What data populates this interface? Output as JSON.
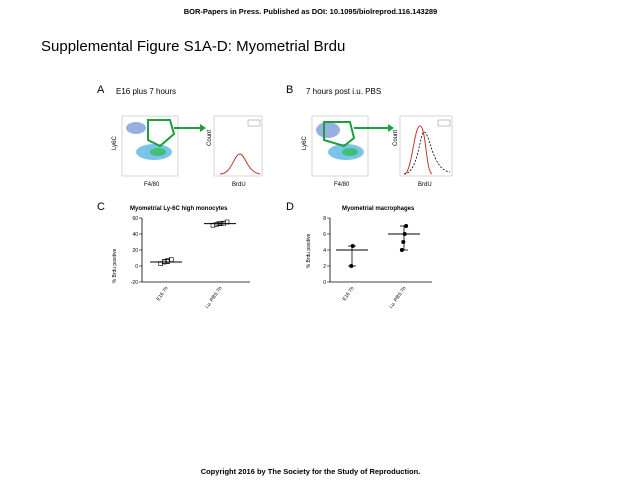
{
  "header": "BOR-Papers in Press. Published as DOI: 10.1095/biolreprod.116.143289",
  "title": "Supplemental Figure S1A-D: Myometrial Brdu",
  "footer": "Copyright 2016 by The Society for the Study of Reproduction.",
  "panels": {
    "A": {
      "letter": "A",
      "title": "E16 plus 7 hours",
      "flow_xlabel": "F4/80",
      "flow_ylabel": "Ly6C",
      "hist_xlabel": "BrdU",
      "hist_ylabel": "Count"
    },
    "B": {
      "letter": "B",
      "title": "7 hours post i.u. PBS",
      "flow_xlabel": "F4/80",
      "flow_ylabel": "Ly6C",
      "hist_xlabel": "BrdU",
      "hist_ylabel": "Count"
    },
    "C": {
      "letter": "C"
    },
    "D": {
      "letter": "D"
    }
  },
  "chart_data": [
    {
      "type": "scatter",
      "title": "Myometrial Ly-6C high monocytes",
      "ylabel": "% Brdu positive",
      "categories": [
        "E16 7h",
        "i.u. PBS 7h"
      ],
      "ylim": [
        -20,
        60
      ],
      "yticks": [
        -20,
        0,
        20,
        40,
        60
      ],
      "series": [
        {
          "category": "E16 7h",
          "points": [
            3,
            5,
            7,
            8
          ],
          "mean": 5,
          "error": [
            3,
            8
          ]
        },
        {
          "category": "i.u. PBS 7h",
          "points": [
            51,
            52,
            53,
            53.5,
            55
          ],
          "mean": 53,
          "error": [
            51,
            55
          ]
        }
      ],
      "marker_color": "#000000"
    },
    {
      "type": "scatter",
      "title": "Myometrial macrophages",
      "ylabel": "% Brdu positive",
      "categories": [
        "E16 7h",
        "i.u. PBS 7h"
      ],
      "ylim": [
        0,
        8
      ],
      "yticks": [
        0,
        2,
        4,
        6,
        8
      ],
      "series": [
        {
          "category": "E16 7h",
          "points": [
            2,
            4.5
          ],
          "mean": 4,
          "error": [
            2,
            4.5
          ]
        },
        {
          "category": "i.u. PBS 7h",
          "points": [
            4,
            5,
            6,
            7
          ],
          "mean": 6,
          "error": [
            4,
            7
          ]
        }
      ],
      "marker_color": "#000000"
    }
  ],
  "colors": {
    "gate": "#1e9e3c",
    "arrow": "#1e9e3c",
    "hist_red": "#c0392b"
  }
}
